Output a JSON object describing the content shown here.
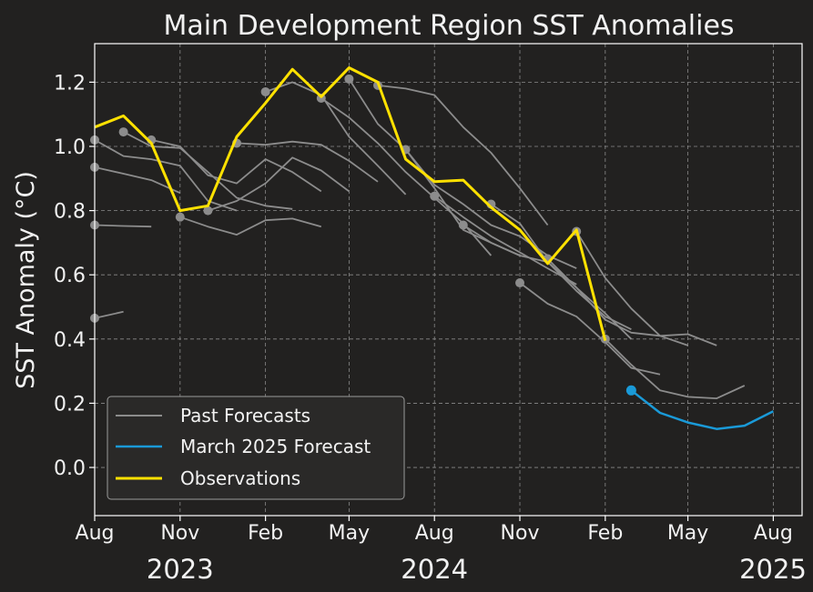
{
  "chart_data": {
    "type": "line",
    "title": "Main Development Region SST Anomalies",
    "xlabel": "",
    "ylabel": "SST Anomaly (°C)",
    "xlim": [
      "2023-08-01",
      "2025-09-01"
    ],
    "ylim": [
      -0.15,
      1.32
    ],
    "yticks": [
      0.0,
      0.2,
      0.4,
      0.6,
      0.8,
      1.0,
      1.2
    ],
    "ytick_labels": [
      "0.0",
      "0.2",
      "0.4",
      "0.6",
      "0.8",
      "1.0",
      "1.2"
    ],
    "xticks": [
      "2023-08-01",
      "2023-11-01",
      "2024-02-01",
      "2024-05-01",
      "2024-08-01",
      "2024-11-01",
      "2025-02-01",
      "2025-05-01",
      "2025-08-01"
    ],
    "xtick_labels": [
      "Aug",
      "Nov",
      "Feb",
      "May",
      "Aug",
      "Nov",
      "Feb",
      "May",
      "Aug"
    ],
    "year_labels": [
      {
        "text": "2023",
        "under": "2023-11-01"
      },
      {
        "text": "2024",
        "under": "2024-08-01"
      },
      {
        "text": "2025",
        "under": "2025-08-01"
      }
    ],
    "grid": true,
    "legend_position": "lower-left",
    "legend": [
      "Past Forecasts",
      "March 2025 Forecast",
      "Observations"
    ],
    "colors": {
      "background": "#222120",
      "past": "#8c8c8c",
      "forecast": "#1a9ad8",
      "observations": "#ffe100",
      "grid": "#8a8a8a",
      "text": "#f2f2f2"
    },
    "past_forecasts": [
      {
        "x": [
          "2023-08",
          "2023-09",
          "2023-10"
        ],
        "y": [
          0.465,
          0.485,
          null
        ]
      },
      {
        "x": [
          "2023-08",
          "2023-09",
          "2023-10",
          "2023-11"
        ],
        "y": [
          0.755,
          0.752,
          0.75,
          null
        ]
      },
      {
        "x": [
          "2023-08",
          "2023-09",
          "2023-10",
          "2023-11",
          "2023-12",
          "2024-01"
        ],
        "y": [
          0.935,
          0.915,
          0.895,
          0.855,
          null,
          null
        ]
      },
      {
        "x": [
          "2023-08",
          "2023-09",
          "2023-10",
          "2023-11",
          "2023-12",
          "2024-01",
          "2024-02"
        ],
        "y": [
          1.02,
          0.97,
          0.96,
          0.94,
          0.83,
          0.8,
          null
        ]
      },
      {
        "x": [
          "2023-09",
          "2023-10",
          "2023-11",
          "2023-12",
          "2024-01",
          "2024-02",
          "2024-03"
        ],
        "y": [
          1.045,
          1.0,
          0.995,
          0.92,
          0.84,
          0.815,
          0.805
        ]
      },
      {
        "x": [
          "2023-10",
          "2023-11",
          "2023-12",
          "2024-01",
          "2024-02",
          "2024-03",
          "2024-04"
        ],
        "y": [
          1.02,
          1.0,
          0.91,
          0.885,
          0.96,
          0.92,
          0.86
        ]
      },
      {
        "x": [
          "2023-11",
          "2023-12",
          "2024-01",
          "2024-02",
          "2024-03",
          "2024-04",
          "2024-05"
        ],
        "y": [
          0.78,
          0.75,
          0.725,
          0.77,
          0.775,
          0.75,
          null
        ]
      },
      {
        "x": [
          "2023-12",
          "2024-01",
          "2024-02",
          "2024-03",
          "2024-04",
          "2024-05",
          "2024-06"
        ],
        "y": [
          0.8,
          0.83,
          0.885,
          0.965,
          0.925,
          0.86,
          null
        ]
      },
      {
        "x": [
          "2024-01",
          "2024-02",
          "2024-03",
          "2024-04",
          "2024-05",
          "2024-06",
          "2024-07"
        ],
        "y": [
          1.01,
          1.005,
          1.015,
          1.005,
          0.955,
          0.89,
          null
        ]
      },
      {
        "x": [
          "2024-02",
          "2024-03",
          "2024-04",
          "2024-05",
          "2024-06",
          "2024-07",
          "2024-08"
        ],
        "y": [
          1.17,
          1.2,
          1.16,
          1.03,
          0.94,
          0.85,
          null
        ]
      },
      {
        "x": [
          "2024-04",
          "2024-05",
          "2024-06",
          "2024-07",
          "2024-08",
          "2024-09",
          "2024-10"
        ],
        "y": [
          1.15,
          1.09,
          1.01,
          0.92,
          0.84,
          0.76,
          0.66
        ]
      },
      {
        "x": [
          "2024-05",
          "2024-06",
          "2024-07",
          "2024-08",
          "2024-09",
          "2024-10",
          "2024-11"
        ],
        "y": [
          1.21,
          1.07,
          0.99,
          0.87,
          0.74,
          0.7,
          0.66
        ]
      },
      {
        "x": [
          "2024-06",
          "2024-07",
          "2024-08",
          "2024-09",
          "2024-10",
          "2024-11",
          "2024-12"
        ],
        "y": [
          1.19,
          1.18,
          1.16,
          1.06,
          0.98,
          0.87,
          0.755
        ]
      },
      {
        "x": [
          "2024-07",
          "2024-08",
          "2024-09",
          "2024-10",
          "2024-11",
          "2024-12",
          "2025-01"
        ],
        "y": [
          0.99,
          0.88,
          0.82,
          0.755,
          0.72,
          0.66,
          0.62
        ]
      },
      {
        "x": [
          "2024-08",
          "2024-09",
          "2024-10",
          "2024-11",
          "2024-12",
          "2025-01"
        ],
        "y": [
          0.845,
          0.78,
          0.72,
          0.67,
          0.62,
          0.57
        ]
      },
      {
        "x": [
          "2024-09",
          "2024-10",
          "2024-11",
          "2024-12",
          "2025-01",
          "2025-02",
          "2025-03"
        ],
        "y": [
          0.755,
          0.7,
          0.66,
          0.64,
          0.55,
          0.47,
          0.43
        ]
      },
      {
        "x": [
          "2024-10",
          "2024-11",
          "2024-12",
          "2025-01",
          "2025-02",
          "2025-03",
          "2025-04"
        ],
        "y": [
          0.82,
          0.76,
          0.64,
          0.56,
          0.48,
          0.4,
          null
        ]
      },
      {
        "x": [
          "2024-11",
          "2024-12",
          "2025-01",
          "2025-02",
          "2025-03",
          "2025-04",
          "2025-05"
        ],
        "y": [
          0.575,
          0.51,
          0.47,
          0.39,
          0.31,
          0.29,
          null
        ]
      },
      {
        "x": [
          "2024-12",
          "2025-01",
          "2025-02",
          "2025-03",
          "2025-04",
          "2025-05",
          "2025-06"
        ],
        "y": [
          0.65,
          0.56,
          0.46,
          0.42,
          0.41,
          0.38,
          null
        ]
      },
      {
        "x": [
          "2025-01",
          "2025-02",
          "2025-03",
          "2025-04",
          "2025-05",
          "2025-06",
          "2025-07"
        ],
        "y": [
          0.735,
          0.59,
          0.495,
          0.41,
          0.415,
          0.38,
          null
        ]
      },
      {
        "x": [
          "2025-02",
          "2025-03",
          "2025-04",
          "2025-05",
          "2025-06",
          "2025-07"
        ],
        "y": [
          0.4,
          0.32,
          0.24,
          0.22,
          0.215,
          0.255
        ]
      }
    ],
    "march_2025_forecast": {
      "x": [
        "2025-03",
        "2025-04",
        "2025-05",
        "2025-06",
        "2025-07",
        "2025-08"
      ],
      "y": [
        0.24,
        0.17,
        0.14,
        0.12,
        0.13,
        0.175
      ]
    },
    "observations": {
      "x": [
        "2023-08",
        "2023-09",
        "2023-10",
        "2023-11",
        "2023-12",
        "2024-01",
        "2024-02",
        "2024-03",
        "2024-04",
        "2024-05",
        "2024-06",
        "2024-07",
        "2024-08",
        "2024-09",
        "2024-10",
        "2024-11",
        "2024-12",
        "2025-01",
        "2025-02"
      ],
      "y": [
        1.06,
        1.095,
        1.01,
        0.8,
        0.815,
        1.03,
        1.135,
        1.24,
        1.155,
        1.245,
        1.2,
        0.96,
        0.89,
        0.895,
        0.81,
        0.74,
        0.635,
        0.74,
        0.395
      ]
    }
  }
}
